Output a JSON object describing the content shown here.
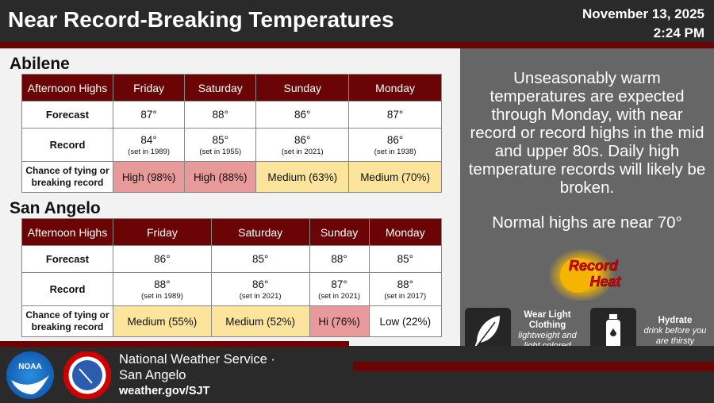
{
  "header": {
    "title": "Near Record-Breaking Temperatures",
    "date": "November 13, 2025",
    "time": "2:24 PM"
  },
  "columns": [
    "Afternoon Highs",
    "Friday",
    "Saturday",
    "Sunday",
    "Monday"
  ],
  "row_labels": {
    "forecast": "Forecast",
    "record": "Record",
    "chance": "Chance of tying or breaking record"
  },
  "abilene": {
    "name": "Abilene",
    "forecast": [
      "87°",
      "88°",
      "86°",
      "87°"
    ],
    "record": [
      "84°",
      "85°",
      "86°",
      "86°"
    ],
    "record_year": [
      "(set in 1989)",
      "(set in 1955)",
      "(set in 2021)",
      "(set in 1938)"
    ],
    "chance": [
      "High (98%)",
      "High (88%)",
      "Medium  (63%)",
      "Medium (70%)"
    ],
    "chance_level": [
      "high",
      "high",
      "medium",
      "medium"
    ]
  },
  "san_angelo": {
    "name": "San Angelo",
    "forecast": [
      "86°",
      "85°",
      "88°",
      "85°"
    ],
    "record": [
      "88°",
      "86°",
      "87°",
      "88°"
    ],
    "record_year": [
      "(set in 1989)",
      "(set in 2021)",
      "(set in 2021)",
      "(set in 2017)"
    ],
    "chance": [
      "Medium (55%)",
      "Medium  (52%)",
      "Hi (76%)",
      "Low (22%)"
    ],
    "chance_level": [
      "medium",
      "medium",
      "high",
      "low"
    ]
  },
  "side": {
    "message": "Unseasonably warm temperatures are expected through Monday, with near record or record highs in the mid and upper 80s. Daily high temperature records will likely be broken.",
    "normal": "Normal highs are near 70°",
    "graphic_text": "Record Heat",
    "tip1_title": "Wear Light Clothing",
    "tip1_sub": "lightweight and light colored",
    "tip2_title": "Hydrate",
    "tip2_sub": "drink before you are thirsty"
  },
  "footer": {
    "office": "National Weather Service ·",
    "office2": "San Angelo",
    "url": "weather.gov/SJT",
    "noaa": "NOAA",
    "nws_seal": "National Weather Service"
  },
  "colors": {
    "maroon": "#6b0505",
    "high": "#e89a9a",
    "medium": "#fde49c"
  }
}
